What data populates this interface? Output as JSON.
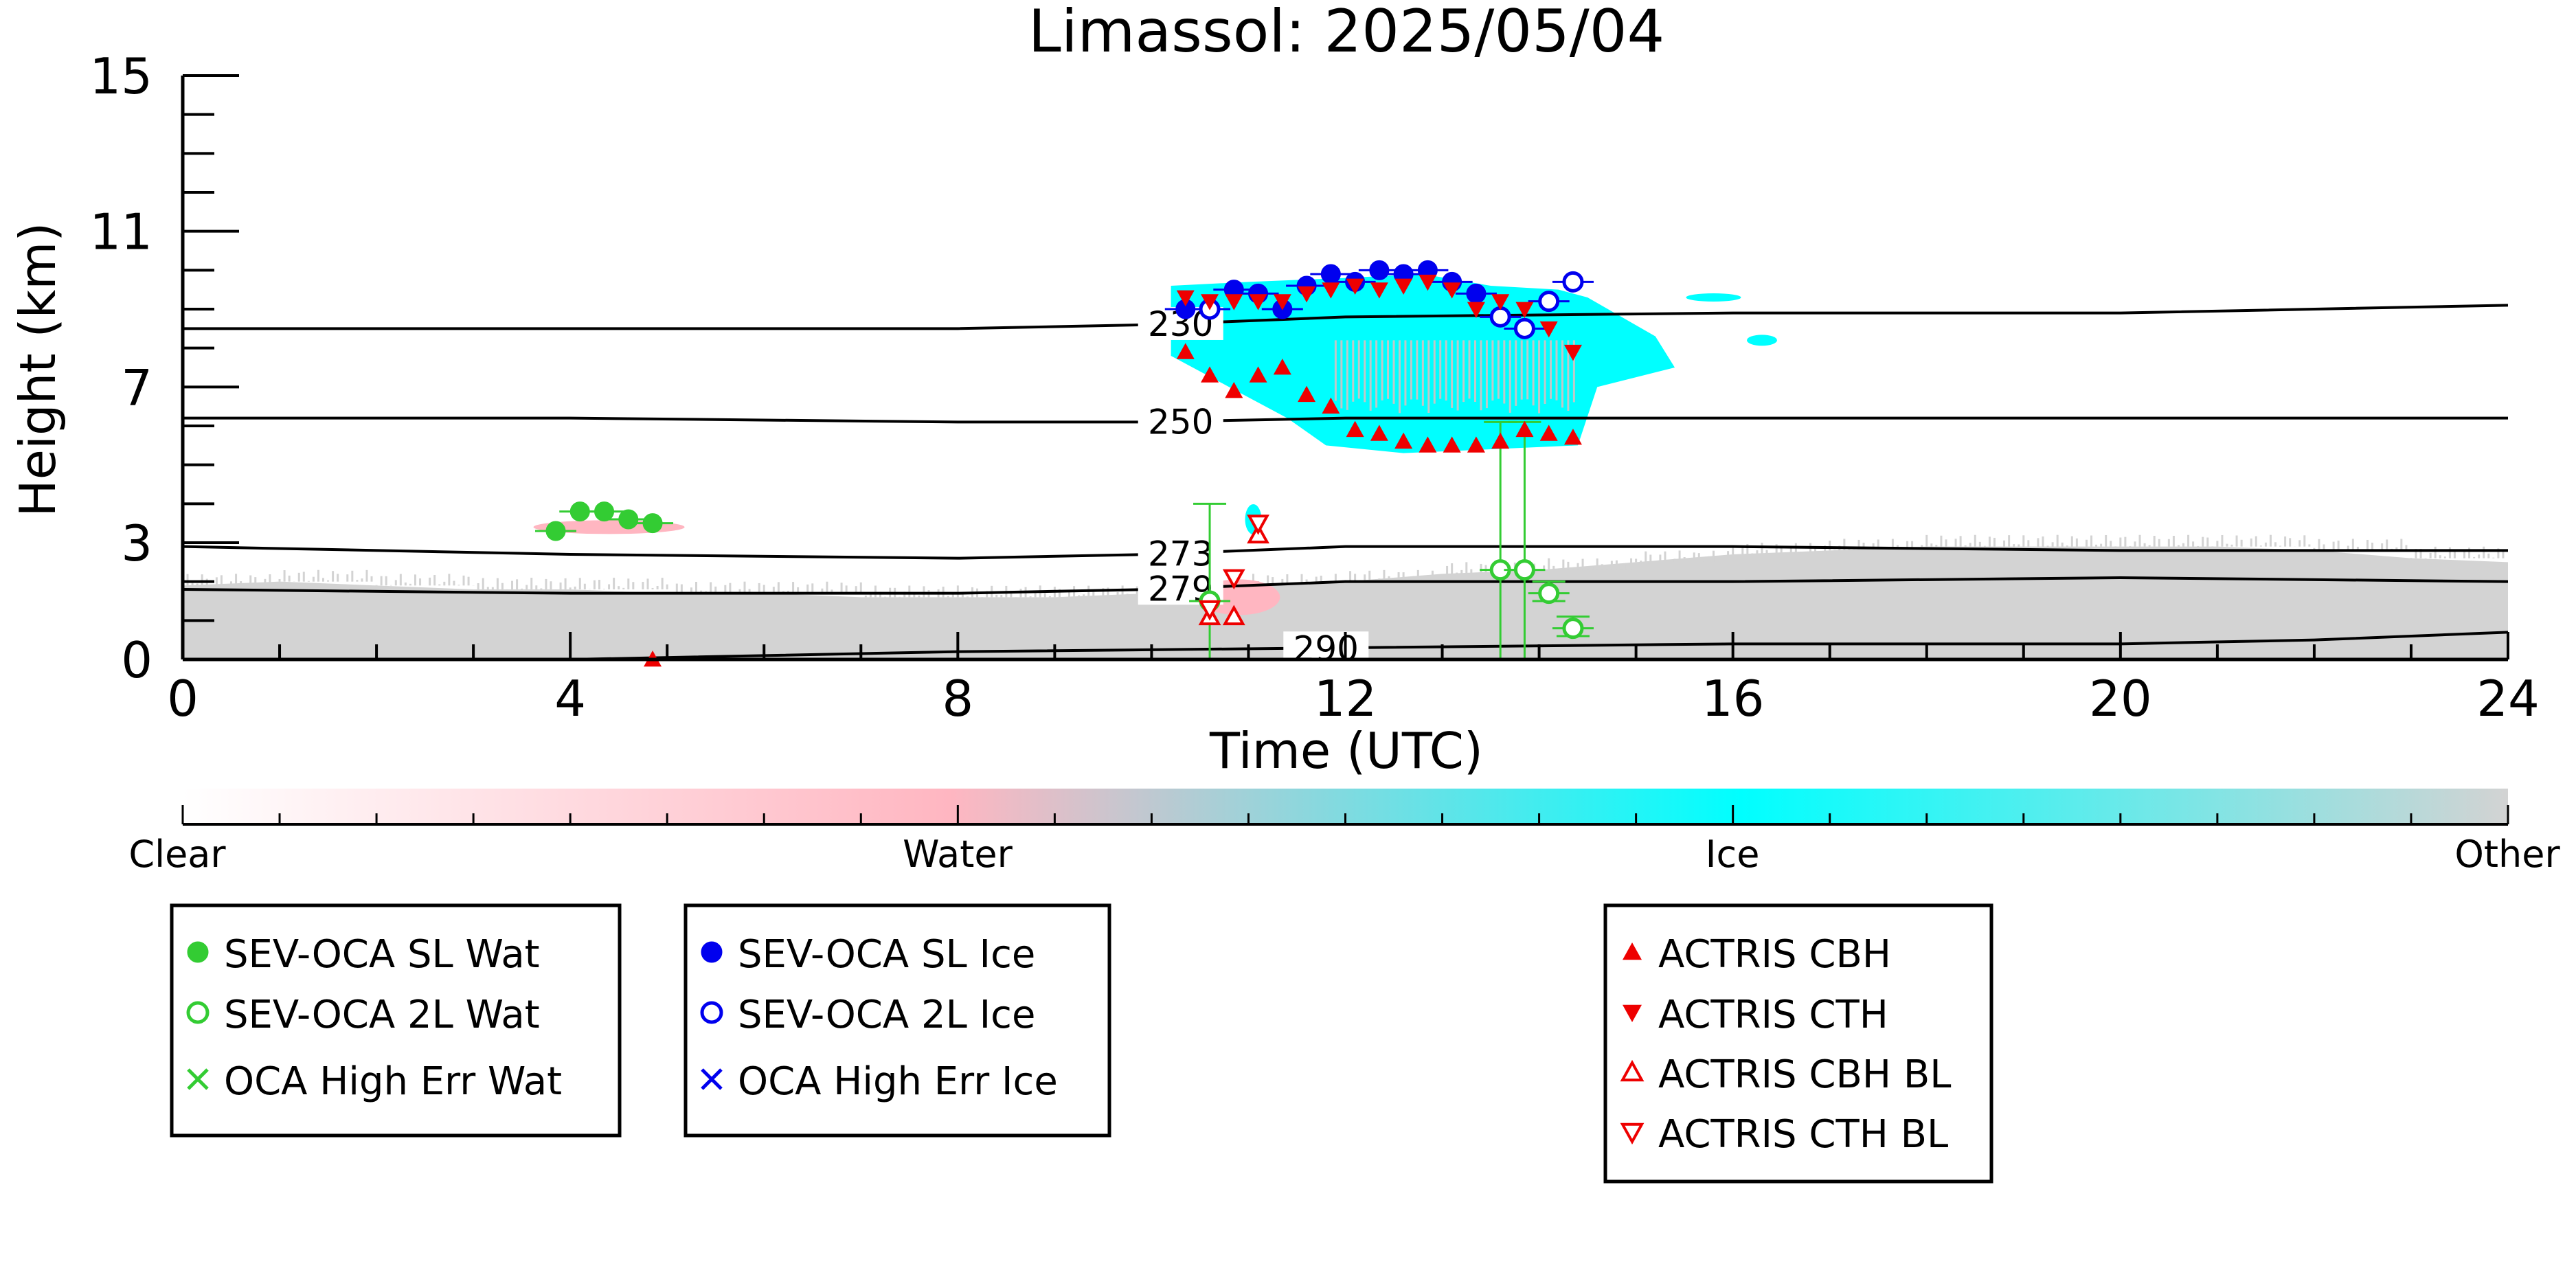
{
  "chart_data": {
    "type": "scatter",
    "title": "Limassol: 2025/05/04",
    "xlabel": "Time (UTC)",
    "ylabel": "Height (km)",
    "xlim": [
      0,
      24
    ],
    "ylim": [
      0,
      15
    ],
    "xticks": [
      0,
      4,
      8,
      12,
      16,
      20,
      24
    ],
    "yticks": [
      0,
      3,
      7,
      11,
      15
    ],
    "colorbar": {
      "labels": [
        "Clear",
        "Water",
        "Ice",
        "Other"
      ],
      "colors": {
        "clear": "#ffffff",
        "water": "#ffb6c1",
        "ice": "#00ffff",
        "other": "#d3d3d3"
      }
    },
    "contours": [
      {
        "label": "230",
        "label_x": 10.3,
        "points": [
          [
            0,
            8.5
          ],
          [
            4,
            8.5
          ],
          [
            8,
            8.5
          ],
          [
            10,
            8.6
          ],
          [
            12,
            8.8
          ],
          [
            16,
            8.9
          ],
          [
            20,
            8.9
          ],
          [
            24,
            9.1
          ]
        ]
      },
      {
        "label": "250",
        "label_x": 10.3,
        "points": [
          [
            0,
            6.2
          ],
          [
            4,
            6.2
          ],
          [
            8,
            6.1
          ],
          [
            10,
            6.1
          ],
          [
            12,
            6.2
          ],
          [
            16,
            6.2
          ],
          [
            20,
            6.2
          ],
          [
            24,
            6.2
          ]
        ]
      },
      {
        "label": "273",
        "label_x": 10.3,
        "points": [
          [
            0,
            2.9
          ],
          [
            4,
            2.7
          ],
          [
            8,
            2.6
          ],
          [
            10,
            2.7
          ],
          [
            12,
            2.9
          ],
          [
            16,
            2.9
          ],
          [
            20,
            2.8
          ],
          [
            24,
            2.8
          ]
        ]
      },
      {
        "label": "279",
        "label_x": 10.3,
        "points": [
          [
            0,
            1.8
          ],
          [
            4,
            1.7
          ],
          [
            8,
            1.7
          ],
          [
            10,
            1.8
          ],
          [
            12,
            2.0
          ],
          [
            16,
            2.0
          ],
          [
            20,
            2.1
          ],
          [
            24,
            2.0
          ]
        ]
      },
      {
        "label": "290",
        "label_x": 11.8,
        "points": [
          [
            0,
            0
          ],
          [
            4,
            0
          ],
          [
            8,
            0.2
          ],
          [
            12,
            0.3
          ],
          [
            16,
            0.4
          ],
          [
            20,
            0.4
          ],
          [
            22,
            0.5
          ],
          [
            24,
            0.7
          ]
        ]
      }
    ],
    "series": [
      {
        "name": "SEV-OCA SL Wat",
        "marker": "filled-circle",
        "color": "#33cc33",
        "x": [
          3.85,
          4.1,
          4.35,
          4.6,
          4.85
        ],
        "y": [
          3.3,
          3.8,
          3.8,
          3.6,
          3.5
        ]
      },
      {
        "name": "SEV-OCA 2L Wat",
        "marker": "open-circle",
        "color": "#33cc33",
        "x": [
          10.6,
          13.6,
          13.85,
          14.1,
          14.35
        ],
        "y": [
          1.5,
          2.3,
          2.3,
          1.7,
          0.8
        ],
        "err_low": [
          1.5,
          2.3,
          2.3,
          0.2,
          0.2
        ],
        "err_high": [
          2.5,
          3.8,
          3.8,
          0.3,
          0.3
        ]
      },
      {
        "name": "OCA High Err Wat",
        "marker": "x",
        "color": "#33cc33",
        "x": [],
        "y": []
      },
      {
        "name": "SEV-OCA SL Ice",
        "marker": "filled-circle",
        "color": "#0000ee",
        "x": [
          10.35,
          10.85,
          11.1,
          11.35,
          11.6,
          11.85,
          12.1,
          12.35,
          12.6,
          12.85,
          13.1,
          13.35
        ],
        "y": [
          9.0,
          9.5,
          9.4,
          9.0,
          9.6,
          9.9,
          9.7,
          10.0,
          9.9,
          10.0,
          9.7,
          9.4
        ]
      },
      {
        "name": "SEV-OCA 2L Ice",
        "marker": "open-circle",
        "color": "#0000ee",
        "x": [
          10.6,
          13.6,
          13.85,
          14.1,
          14.35
        ],
        "y": [
          9.0,
          8.8,
          8.5,
          9.2,
          9.7
        ]
      },
      {
        "name": "OCA High Err Ice",
        "marker": "x",
        "color": "#0000ee",
        "x": [],
        "y": []
      },
      {
        "name": "ACTRIS CBH",
        "marker": "triangle-up",
        "color": "#ee0000",
        "x": [
          10.35,
          10.6,
          10.85,
          11.1,
          11.35,
          11.6,
          11.85,
          12.1,
          12.35,
          12.6,
          12.85,
          13.1,
          13.35,
          13.6,
          13.85,
          14.1,
          14.35,
          4.85
        ],
        "y": [
          7.9,
          7.3,
          6.9,
          7.3,
          7.5,
          6.8,
          6.5,
          5.9,
          5.8,
          5.6,
          5.5,
          5.5,
          5.5,
          5.6,
          5.9,
          5.8,
          5.7,
          0.0
        ]
      },
      {
        "name": "ACTRIS CTH",
        "marker": "triangle-down",
        "color": "#ee0000",
        "x": [
          10.35,
          10.6,
          10.85,
          11.1,
          11.35,
          11.6,
          11.85,
          12.1,
          12.35,
          12.6,
          12.85,
          13.1,
          13.35,
          13.6,
          13.85,
          14.1,
          14.35
        ],
        "y": [
          9.3,
          9.2,
          9.2,
          9.2,
          9.2,
          9.4,
          9.5,
          9.6,
          9.5,
          9.6,
          9.7,
          9.5,
          9.0,
          9.2,
          9.0,
          8.5,
          7.9
        ]
      },
      {
        "name": "ACTRIS CBH BL",
        "marker": "open-triangle-up",
        "color": "#ee0000",
        "x": [
          10.6,
          10.85,
          11.1
        ],
        "y": [
          1.1,
          1.1,
          3.2
        ]
      },
      {
        "name": "ACTRIS CTH BL",
        "marker": "open-triangle-down",
        "color": "#ee0000",
        "x": [
          10.6,
          10.85,
          11.1
        ],
        "y": [
          1.3,
          2.1,
          3.5
        ]
      }
    ],
    "legend_placement": "below"
  }
}
